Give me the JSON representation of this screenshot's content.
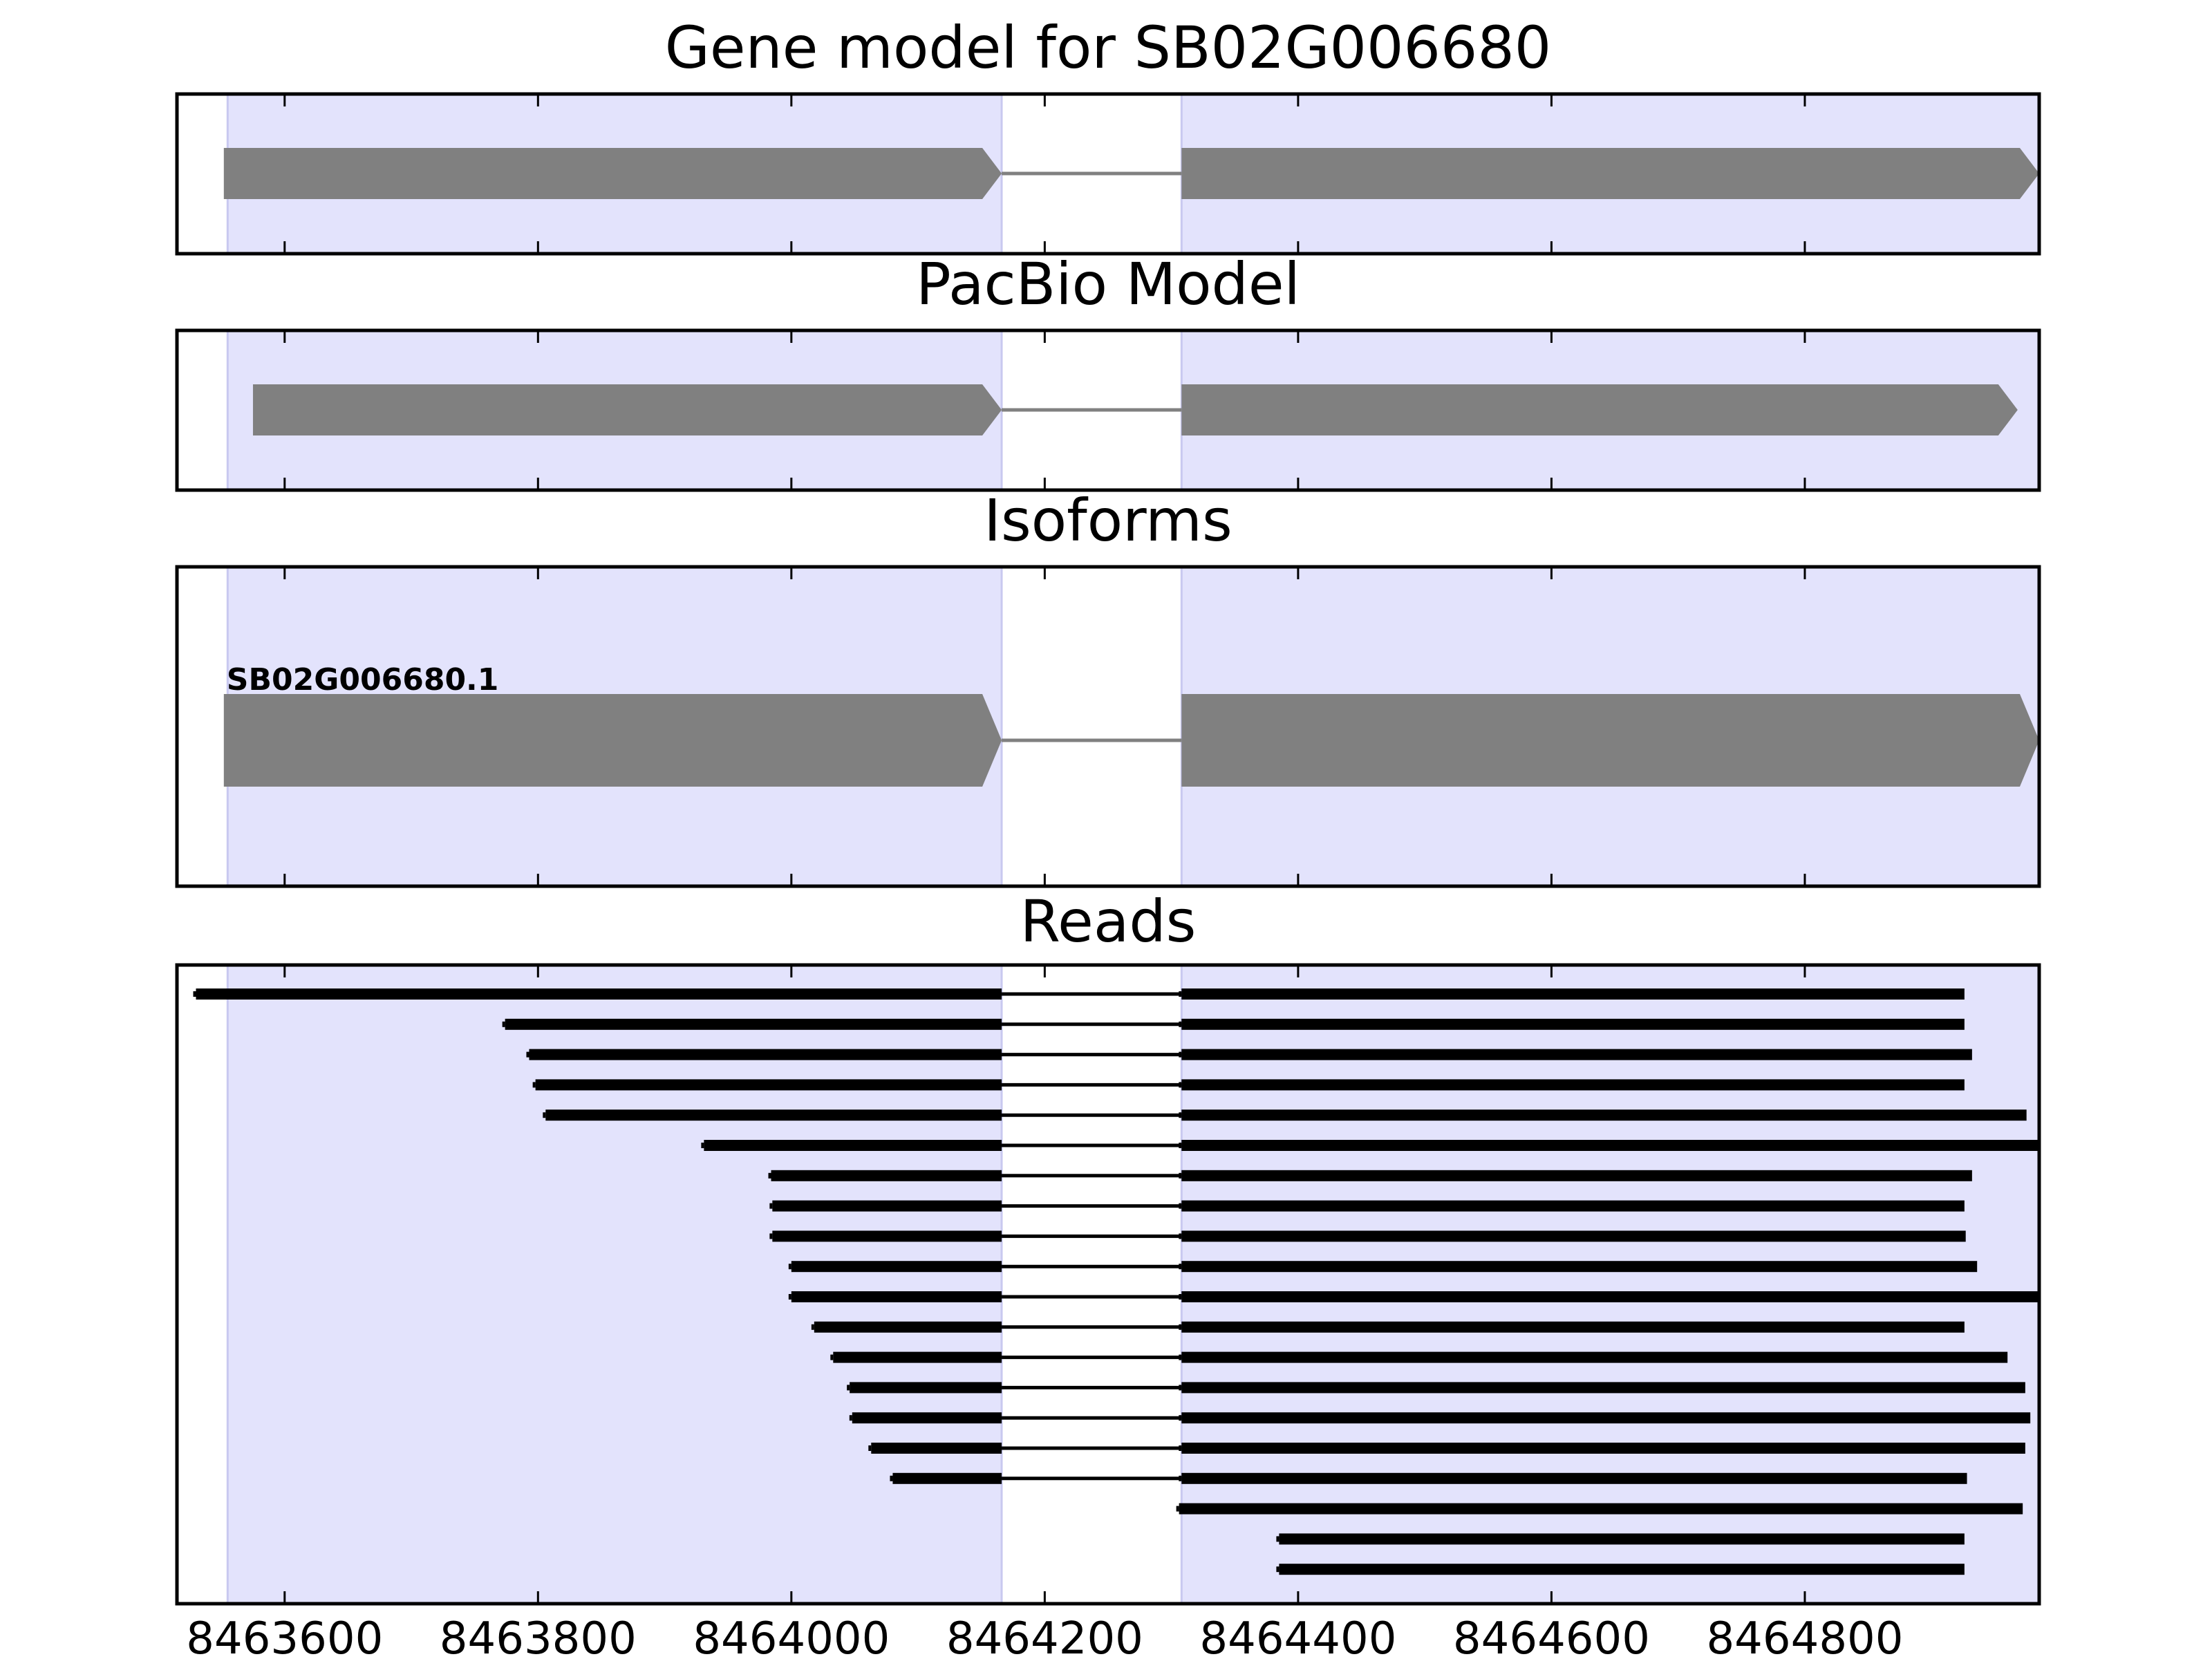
{
  "chart_data": {
    "type": "gene-structure",
    "xlim": [
      8463515,
      8464985
    ],
    "ticks": [
      8463600,
      8463800,
      8464000,
      8464200,
      8464400,
      8464600,
      8464800
    ],
    "tick_labels": [
      "8463600",
      "8463800",
      "8464000",
      "8464200",
      "8464400",
      "8464600",
      "8464800"
    ],
    "colors": {
      "exon_region": "#e3e3fc",
      "exon_region_edge": "#c9c9f0",
      "gene_model": "#808080",
      "read": "#000000"
    },
    "exon_regions": [
      [
        8463555,
        8464166
      ],
      [
        8464308,
        8465023
      ]
    ],
    "panels": [
      {
        "id": "gene-model",
        "title": "Gene model for SB02G006680",
        "strand": "+",
        "exons": [
          [
            8463552,
            8464166
          ],
          [
            8464308,
            8465026
          ]
        ]
      },
      {
        "id": "pacbio-model",
        "title": "PacBio Model",
        "strand": "+",
        "exons": [
          [
            8463575,
            8464166
          ],
          [
            8464308,
            8464968
          ]
        ]
      },
      {
        "id": "isoforms",
        "title": "Isoforms",
        "isoforms": [
          {
            "label": "SB02G006680.1",
            "strand": "+",
            "exons": [
              [
                8463552,
                8464166
              ],
              [
                8464308,
                8465023
              ]
            ]
          }
        ]
      },
      {
        "id": "reads",
        "title": "Reads",
        "reads": [
          [
            [
              8463530,
              8464166
            ],
            [
              8464308,
              8464926
            ]
          ],
          [
            [
              8463774,
              8464166
            ],
            [
              8464308,
              8464926
            ]
          ],
          [
            [
              8463793,
              8464166
            ],
            [
              8464308,
              8464932
            ]
          ],
          [
            [
              8463798,
              8464166
            ],
            [
              8464308,
              8464926
            ]
          ],
          [
            [
              8463806,
              8464166
            ],
            [
              8464308,
              8464975
            ]
          ],
          [
            [
              8463931,
              8464166
            ],
            [
              8464308,
              8464984
            ]
          ],
          [
            [
              8463984,
              8464166
            ],
            [
              8464308,
              8464932
            ]
          ],
          [
            [
              8463985,
              8464166
            ],
            [
              8464308,
              8464926
            ]
          ],
          [
            [
              8463985,
              8464166
            ],
            [
              8464308,
              8464927
            ]
          ],
          [
            [
              8464000,
              8464166
            ],
            [
              8464308,
              8464936
            ]
          ],
          [
            [
              8464000,
              8464166
            ],
            [
              8464308,
              8465020
            ]
          ],
          [
            [
              8464018,
              8464166
            ],
            [
              8464308,
              8464926
            ]
          ],
          [
            [
              8464033,
              8464166
            ],
            [
              8464308,
              8464960
            ]
          ],
          [
            [
              8464046,
              8464166
            ],
            [
              8464308,
              8464974
            ]
          ],
          [
            [
              8464048,
              8464166
            ],
            [
              8464308,
              8464978
            ]
          ],
          [
            [
              8464063,
              8464166
            ],
            [
              8464308,
              8464974
            ]
          ],
          [
            [
              8464080,
              8464166
            ],
            [
              8464308,
              8464928
            ]
          ],
          [
            [
              8464306,
              8464972
            ]
          ],
          [
            [
              8464385,
              8464926
            ]
          ],
          [
            [
              8464385,
              8464926
            ]
          ]
        ]
      }
    ]
  }
}
